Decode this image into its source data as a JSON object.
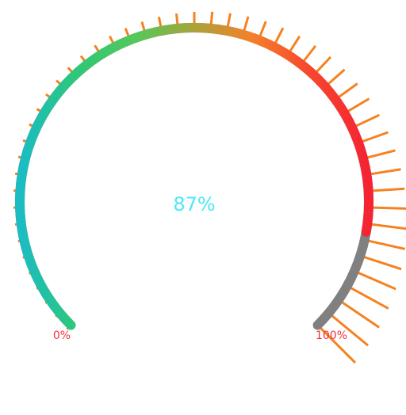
{
  "chart_data": {
    "type": "gauge",
    "value": 87,
    "min": 0,
    "max": 100,
    "value_label": "87%",
    "min_label": "0%",
    "max_label": "100%",
    "colors": {
      "gradient_stops": [
        "#1bbcc2",
        "#2fc875",
        "#55c85a",
        "#a9a33a",
        "#f57f2a",
        "#f9472d",
        "#f42433"
      ],
      "track": "#808080",
      "ticks": "#f58220",
      "value_text": "#4ee7f5",
      "end_labels": "#f0323f"
    }
  }
}
